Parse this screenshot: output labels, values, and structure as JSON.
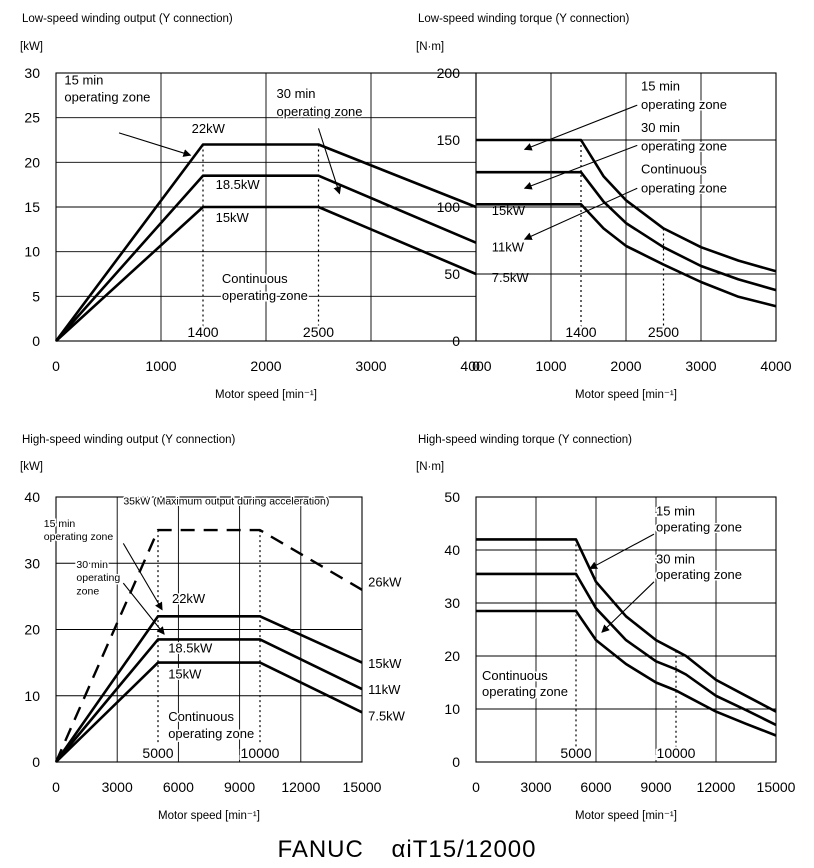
{
  "footer": {
    "brand": "FANUC",
    "model": "αiT15/12000"
  },
  "chart_data": [
    {
      "id": "c1",
      "type": "line",
      "title": "Low-speed winding output (Y connection)",
      "ylabel": "[kW]",
      "xlabel": "Motor speed [min⁻¹]",
      "xlim": [
        0,
        4000
      ],
      "ylim": [
        0,
        30
      ],
      "xticks": [
        0,
        1000,
        2000,
        3000,
        4000
      ],
      "yticks": [
        0,
        5,
        10,
        15,
        20,
        25,
        30
      ],
      "grid": true,
      "series": [
        {
          "style": "solid",
          "x": [
            0,
            1400,
            2500,
            4000
          ],
          "y": [
            0,
            22,
            22,
            15
          ]
        },
        {
          "style": "solid",
          "x": [
            0,
            1400,
            2500,
            4000
          ],
          "y": [
            0,
            18.5,
            18.5,
            11
          ]
        },
        {
          "style": "solid",
          "x": [
            0,
            1400,
            2500,
            4000
          ],
          "y": [
            0,
            15,
            15,
            7.5
          ]
        }
      ],
      "vlines": [
        {
          "x": 1400,
          "y0": 1.5,
          "y1": 22,
          "label": "1400"
        },
        {
          "x": 2500,
          "y0": 1.5,
          "y1": 22,
          "label": "2500"
        }
      ],
      "annotations": [
        {
          "text": "15 min",
          "x": 80,
          "y": 28.7,
          "anchor": "start"
        },
        {
          "text": "operating zone",
          "x": 80,
          "y": 26.8,
          "anchor": "start"
        },
        {
          "text": "30 min",
          "x": 2100,
          "y": 27.2,
          "anchor": "start"
        },
        {
          "text": "operating zone",
          "x": 2100,
          "y": 25.2,
          "anchor": "start"
        },
        {
          "text": "22kW",
          "x": 1450,
          "y": 23.3,
          "anchor": "middle"
        },
        {
          "text": "18.5kW",
          "x": 1520,
          "y": 17,
          "anchor": "start"
        },
        {
          "text": "15kW",
          "x": 1520,
          "y": 13.3,
          "anchor": "start"
        },
        {
          "text": "Continuous",
          "x": 1580,
          "y": 6.5,
          "anchor": "start"
        },
        {
          "text": "operating zone",
          "x": 1580,
          "y": 4.6,
          "anchor": "start"
        },
        {
          "text": "15kW",
          "x": 4150,
          "y": 14.1,
          "anchor": "start"
        },
        {
          "text": "11kW",
          "x": 4150,
          "y": 10,
          "anchor": "start"
        },
        {
          "text": "7.5kW",
          "x": 4150,
          "y": 6.6,
          "anchor": "start"
        }
      ],
      "arrows": [
        {
          "from": [
            600,
            23.3
          ],
          "to": [
            1280,
            20.8
          ]
        },
        {
          "from": [
            2500,
            23.8
          ],
          "to": [
            2700,
            16.5
          ]
        }
      ]
    },
    {
      "id": "c2",
      "type": "line",
      "title": "Low-speed winding torque (Y connection)",
      "ylabel": "[N·m]",
      "xlabel": "Motor speed [min⁻¹]",
      "xlim": [
        0,
        4000
      ],
      "ylim": [
        0,
        200
      ],
      "xticks": [
        0,
        1000,
        2000,
        3000,
        4000
      ],
      "yticks": [
        0,
        50,
        100,
        150,
        200
      ],
      "grid": true,
      "series": [
        {
          "style": "solid",
          "x": [
            0,
            1400,
            1700,
            2000,
            2500,
            3000,
            3500,
            4000
          ],
          "y": [
            150,
            150,
            123,
            105,
            84,
            70,
            60,
            52
          ]
        },
        {
          "style": "solid",
          "x": [
            0,
            1400,
            1700,
            2000,
            2500,
            3000,
            3500,
            4000
          ],
          "y": [
            126,
            126,
            104,
            88,
            70,
            56,
            46,
            38
          ]
        },
        {
          "style": "solid",
          "x": [
            0,
            1400,
            1700,
            2000,
            2500,
            3000,
            3500,
            4000
          ],
          "y": [
            102,
            102,
            84,
            71,
            57,
            44,
            33,
            26
          ]
        }
      ],
      "vlines": [
        {
          "x": 1400,
          "y0": 10,
          "y1": 150,
          "label": "1400"
        },
        {
          "x": 2500,
          "y0": 10,
          "y1": 84,
          "label": "2500"
        }
      ],
      "annotations": [
        {
          "text": "15 min",
          "x": 2200,
          "y": 187,
          "anchor": "start"
        },
        {
          "text": "operating zone",
          "x": 2200,
          "y": 173,
          "anchor": "start"
        },
        {
          "text": "30 min",
          "x": 2200,
          "y": 156,
          "anchor": "start"
        },
        {
          "text": "operating zone",
          "x": 2200,
          "y": 142,
          "anchor": "start"
        },
        {
          "text": "Continuous",
          "x": 2200,
          "y": 125,
          "anchor": "start"
        },
        {
          "text": "operating zone",
          "x": 2200,
          "y": 111,
          "anchor": "start"
        }
      ],
      "arrows": [
        {
          "from": [
            2150,
            176
          ],
          "to": [
            650,
            143
          ]
        },
        {
          "from": [
            2150,
            146
          ],
          "to": [
            650,
            114
          ]
        },
        {
          "from": [
            2150,
            114
          ],
          "to": [
            650,
            76
          ]
        }
      ]
    },
    {
      "id": "c3",
      "type": "line",
      "title": "High-speed winding output (Y connection)",
      "ylabel": "[kW]",
      "xlabel": "Motor speed [min⁻¹]",
      "xlim": [
        0,
        15000
      ],
      "ylim": [
        0,
        40
      ],
      "xticks": [
        0,
        3000,
        6000,
        9000,
        12000,
        15000
      ],
      "yticks": [
        0,
        10,
        20,
        30,
        40
      ],
      "grid": true,
      "series": [
        {
          "style": "dashed",
          "x": [
            0,
            5000,
            10000,
            15000
          ],
          "y": [
            0,
            35,
            35,
            26
          ]
        },
        {
          "style": "solid",
          "x": [
            0,
            5000,
            10000,
            15000
          ],
          "y": [
            0,
            22,
            22,
            15
          ]
        },
        {
          "style": "solid",
          "x": [
            0,
            5000,
            10000,
            15000
          ],
          "y": [
            0,
            18.5,
            18.5,
            11
          ]
        },
        {
          "style": "solid",
          "x": [
            0,
            5000,
            10000,
            15000
          ],
          "y": [
            0,
            15,
            15,
            7.5
          ]
        }
      ],
      "vlines": [
        {
          "x": 5000,
          "y0": 3,
          "y1": 35,
          "label": "5000"
        },
        {
          "x": 10000,
          "y0": 3,
          "y1": 35,
          "label": "10000"
        }
      ],
      "annotations": [
        {
          "text": "35kW (Maximum output during acceleration)",
          "x": 3300,
          "y": 38.9,
          "anchor": "start",
          "small": true
        },
        {
          "text": "15 min",
          "x": -600,
          "y": 35.5,
          "anchor": "start",
          "small": true
        },
        {
          "text": "operating zone",
          "x": -600,
          "y": 33.5,
          "anchor": "start",
          "small": true
        },
        {
          "text": "30 min",
          "x": 1000,
          "y": 29.3,
          "anchor": "start",
          "small": true
        },
        {
          "text": "operating",
          "x": 1000,
          "y": 27.3,
          "anchor": "start",
          "small": true
        },
        {
          "text": "zone",
          "x": 1000,
          "y": 25.3,
          "anchor": "start",
          "small": true
        },
        {
          "text": "22kW",
          "x": 6500,
          "y": 24,
          "anchor": "middle"
        },
        {
          "text": "18.5kW",
          "x": 5500,
          "y": 16.5,
          "anchor": "start"
        },
        {
          "text": "15kW",
          "x": 5500,
          "y": 12.6,
          "anchor": "start"
        },
        {
          "text": "Continuous",
          "x": 5500,
          "y": 6.2,
          "anchor": "start"
        },
        {
          "text": "operating zone",
          "x": 5500,
          "y": 3.6,
          "anchor": "start"
        },
        {
          "text": "26kW",
          "x": 15300,
          "y": 26.5,
          "anchor": "start"
        },
        {
          "text": "15kW",
          "x": 15300,
          "y": 14.2,
          "anchor": "start"
        },
        {
          "text": "11kW",
          "x": 15300,
          "y": 10.3,
          "anchor": "start"
        },
        {
          "text": "7.5kW",
          "x": 15300,
          "y": 6.3,
          "anchor": "start"
        }
      ],
      "arrows": [
        {
          "from": [
            3300,
            33
          ],
          "to": [
            5200,
            23
          ]
        },
        {
          "from": [
            3300,
            27
          ],
          "to": [
            5300,
            19.3
          ]
        }
      ]
    },
    {
      "id": "c4",
      "type": "line",
      "title": "High-speed winding torque (Y connection)",
      "ylabel": "[N·m]",
      "xlabel": "Motor speed [min⁻¹]",
      "xlim": [
        0,
        15000
      ],
      "ylim": [
        0,
        50
      ],
      "xticks": [
        0,
        3000,
        6000,
        9000,
        12000,
        15000
      ],
      "yticks": [
        0,
        10,
        20,
        30,
        40,
        50
      ],
      "ytick_labels": [
        "0",
        "10",
        "20",
        "30",
        "40",
        "50"
      ],
      "grid": true,
      "series": [
        {
          "style": "solid",
          "x": [
            0,
            5000,
            6000,
            7500,
            9000,
            10000,
            10500,
            12000,
            13500,
            15000
          ],
          "y": [
            42,
            42,
            34,
            27.5,
            23,
            21,
            20,
            15.5,
            12.5,
            9.5
          ]
        },
        {
          "style": "solid",
          "x": [
            0,
            5000,
            6000,
            7500,
            9000,
            10000,
            10500,
            12000,
            13500,
            15000
          ],
          "y": [
            35.5,
            35.5,
            29,
            23,
            19,
            17.5,
            16.5,
            12.5,
            9.8,
            7
          ]
        },
        {
          "style": "solid",
          "x": [
            0,
            5000,
            6000,
            7500,
            9000,
            10000,
            10500,
            12000,
            13500,
            15000
          ],
          "y": [
            28.5,
            28.5,
            23,
            18.5,
            15,
            13.5,
            12.5,
            9.5,
            7.2,
            5
          ]
        }
      ],
      "vlines": [
        {
          "x": 5000,
          "y0": 2,
          "y1": 42,
          "label": "5000"
        },
        {
          "x": 10000,
          "y0": 2,
          "y1": 21,
          "label": "10000"
        }
      ],
      "annotations": [
        {
          "text": "15 min",
          "x": 9000,
          "y": 46.5,
          "anchor": "start"
        },
        {
          "text": "operating zone",
          "x": 9000,
          "y": 43.5,
          "anchor": "start"
        },
        {
          "text": "30 min",
          "x": 9000,
          "y": 37.5,
          "anchor": "start"
        },
        {
          "text": "operating zone",
          "x": 9000,
          "y": 34.5,
          "anchor": "start"
        },
        {
          "text": "Continuous",
          "x": 300,
          "y": 15.5,
          "anchor": "start"
        },
        {
          "text": "operating zone",
          "x": 300,
          "y": 12.5,
          "anchor": "start"
        }
      ],
      "arrows": [
        {
          "from": [
            8900,
            43
          ],
          "to": [
            5700,
            36.5
          ]
        },
        {
          "from": [
            8900,
            34
          ],
          "to": [
            6300,
            24.5
          ]
        }
      ]
    }
  ]
}
